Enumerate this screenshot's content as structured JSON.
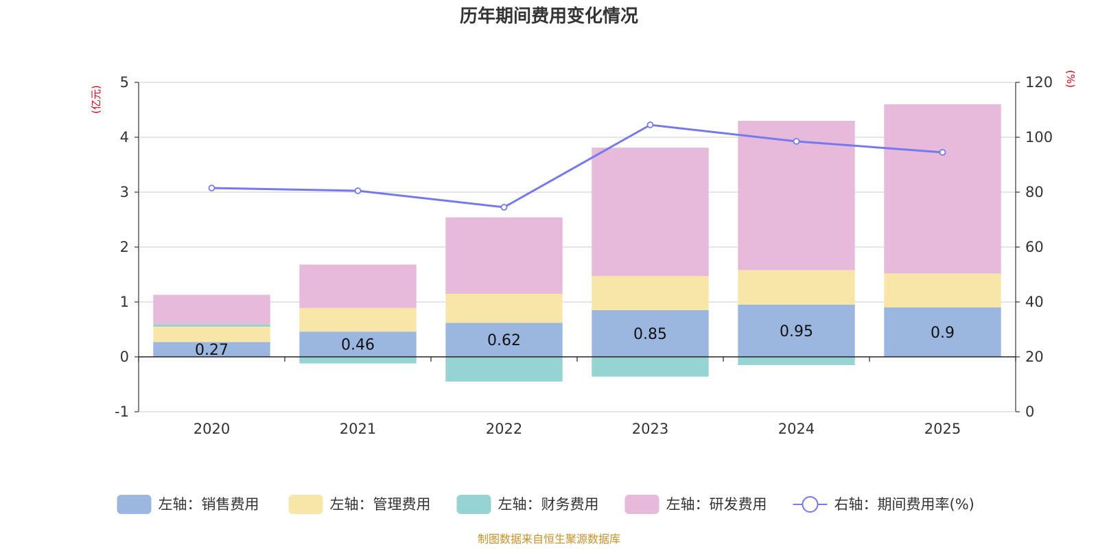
{
  "chart_data": {
    "type": "bar",
    "title": "历年期间费用变化情况",
    "categories": [
      "2020",
      "2021",
      "2022",
      "2023",
      "2024",
      "2025"
    ],
    "left_axis": {
      "unit": "(亿元)",
      "ylim": [
        -1,
        5
      ],
      "ticks": [
        "-1",
        "0",
        "1",
        "2",
        "3",
        "4",
        "5"
      ]
    },
    "right_axis": {
      "unit": "(%)",
      "ylim": [
        0,
        120
      ],
      "ticks": [
        "0",
        "20",
        "40",
        "60",
        "80",
        "100",
        "120"
      ]
    },
    "series": [
      {
        "name": "左轴：销售费用",
        "color": "#9bb7e0",
        "values": [
          0.27,
          0.46,
          0.62,
          0.85,
          0.95,
          0.9
        ],
        "labels": [
          "0.27",
          "0.46",
          "0.62",
          "0.85",
          "0.95",
          "0.9"
        ]
      },
      {
        "name": "左轴：管理费用",
        "color": "#f8e6a8",
        "values": [
          0.28,
          0.43,
          0.53,
          0.62,
          0.63,
          0.62
        ]
      },
      {
        "name": "左轴：财务费用",
        "color": "#96d4d4",
        "values": [
          0.04,
          -0.12,
          -0.45,
          -0.36,
          -0.15,
          0.0
        ]
      },
      {
        "name": "左轴：研发费用",
        "color": "#e7b9da",
        "values": [
          0.54,
          0.79,
          1.39,
          2.34,
          2.72,
          3.08
        ]
      },
      {
        "name": "右轴：期间费用率(%)",
        "color": "#7479ee",
        "type": "line",
        "axis": "right",
        "values": [
          81.5,
          80.5,
          74.5,
          104.5,
          98.5,
          94.5
        ]
      }
    ],
    "source": "制图数据来自恒生聚源数据库"
  }
}
